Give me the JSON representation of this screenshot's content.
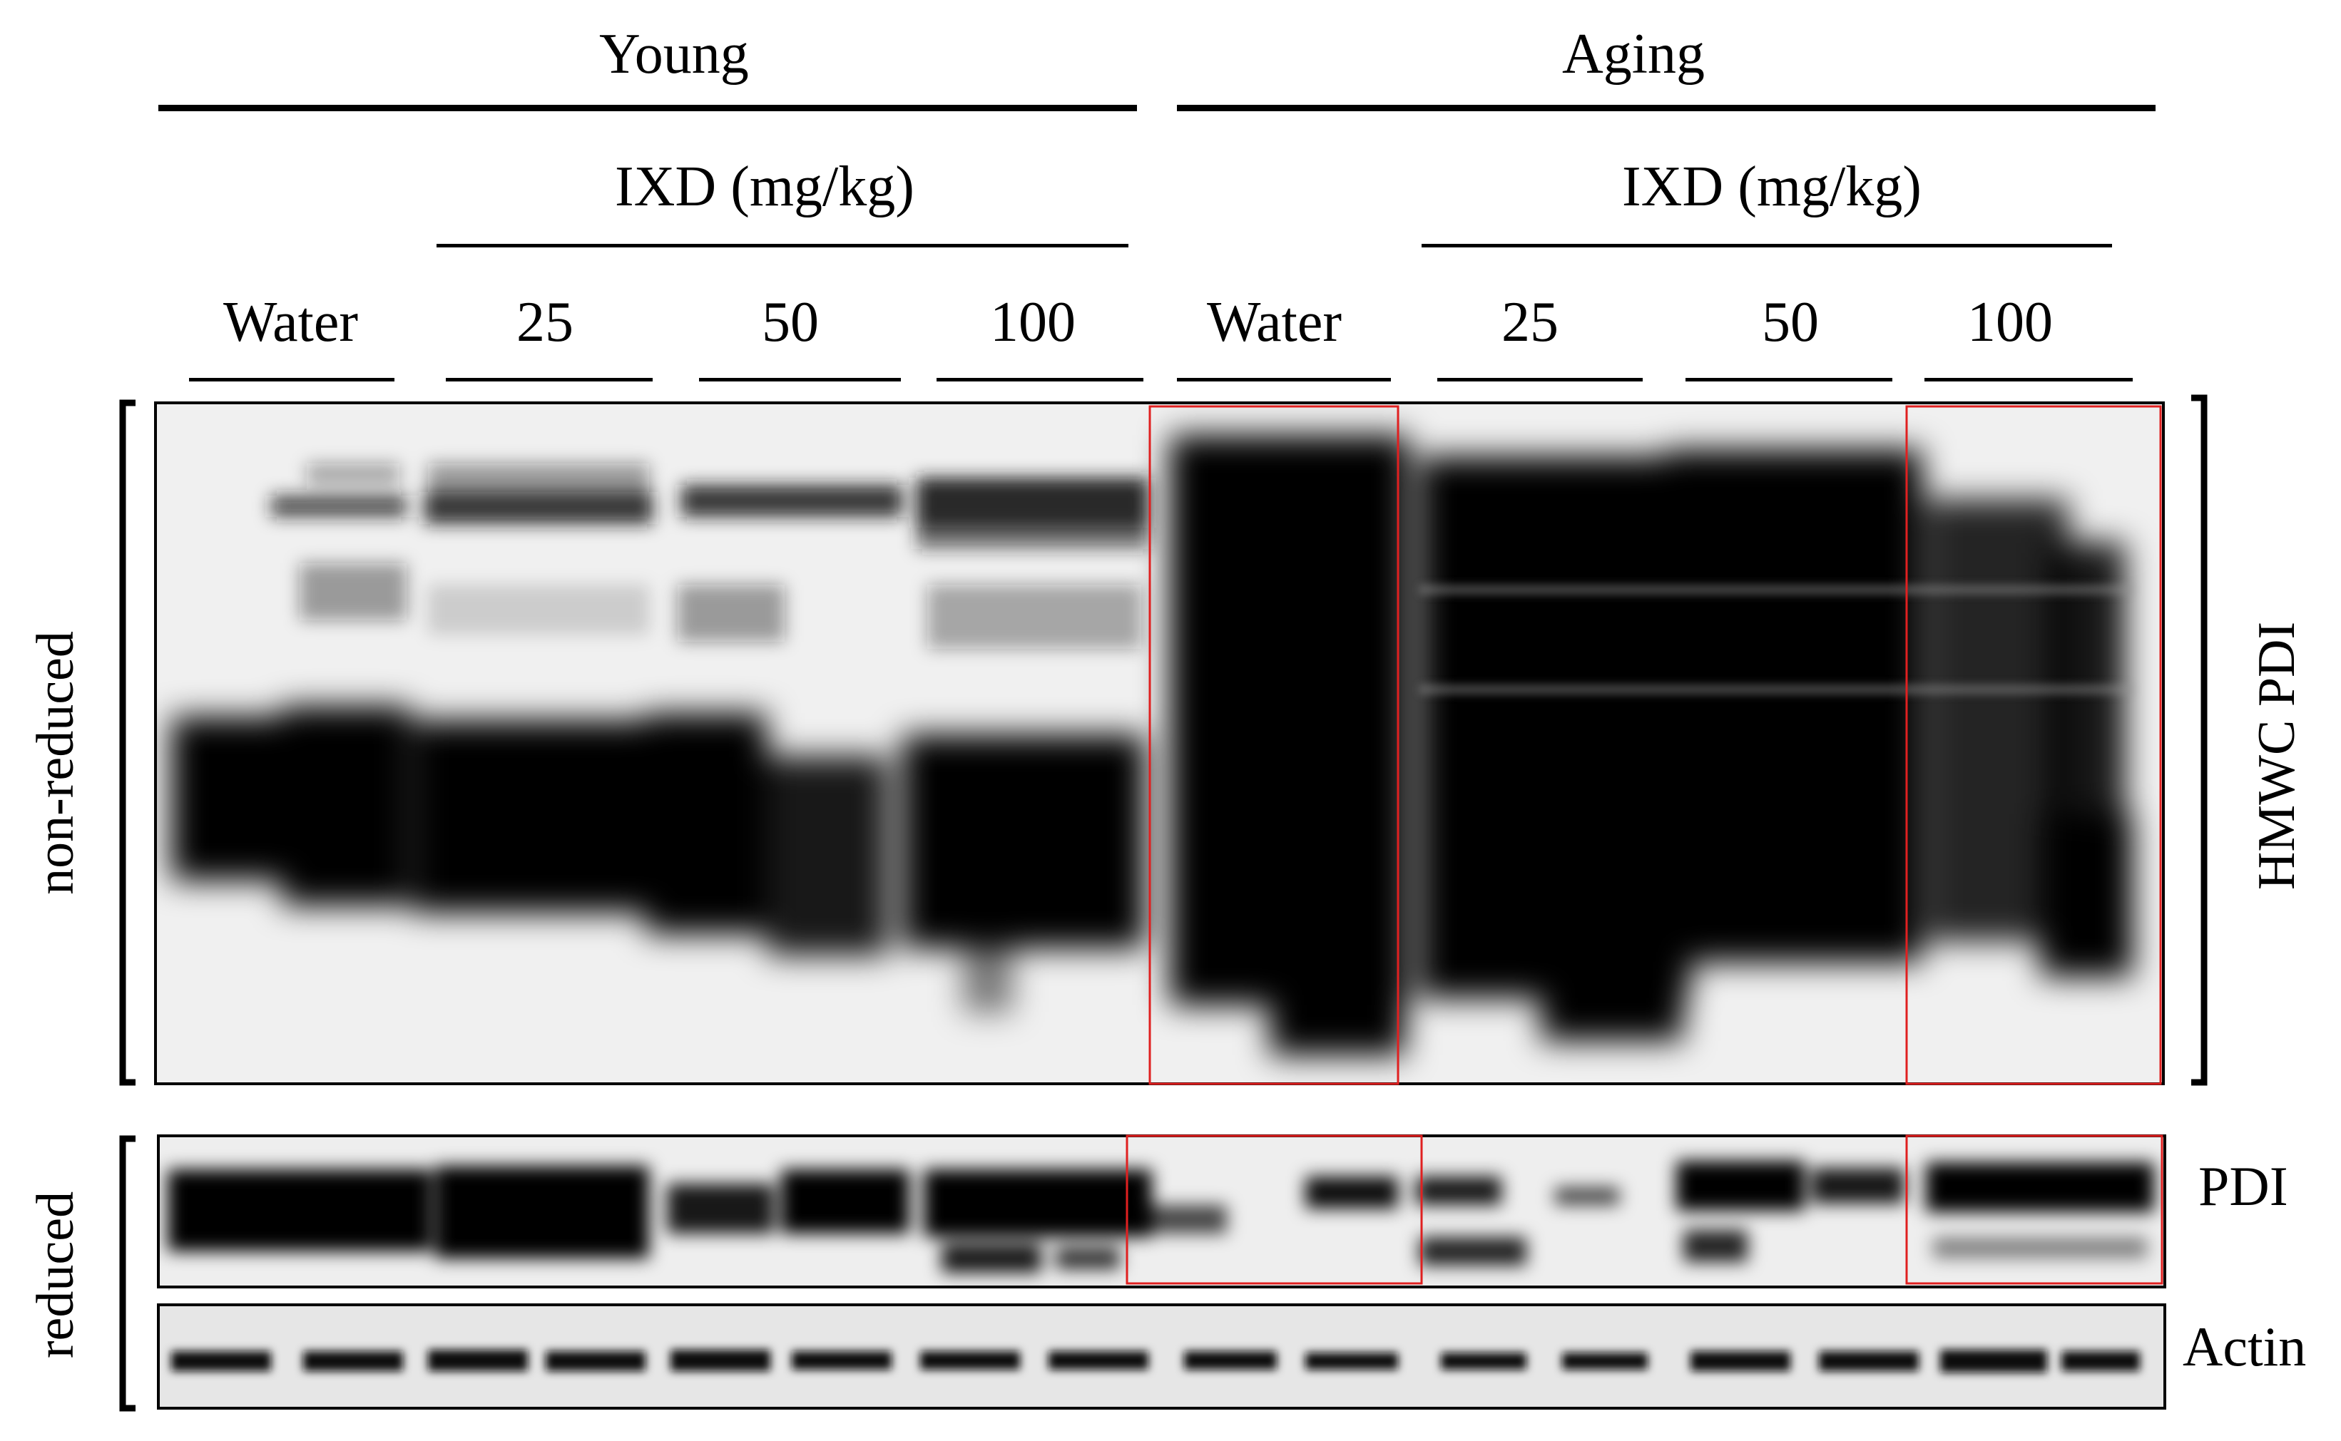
{
  "groups": {
    "young": "Young",
    "aging": "Aging"
  },
  "treatment_label": "IXD (mg/kg)",
  "lanes": [
    "Water",
    "25",
    "50",
    "100",
    "Water",
    "25",
    "50",
    "100"
  ],
  "conditions": {
    "non_reduced": "non-reduced",
    "reduced": "reduced"
  },
  "bands": {
    "hmwc_pdi": "HMWC PDI",
    "pdi": "PDI",
    "actin": "Actin"
  },
  "colors": {
    "highlight_box": "#e02020",
    "blot_background": "#eeeeee",
    "band": "#0a0a0a"
  }
}
